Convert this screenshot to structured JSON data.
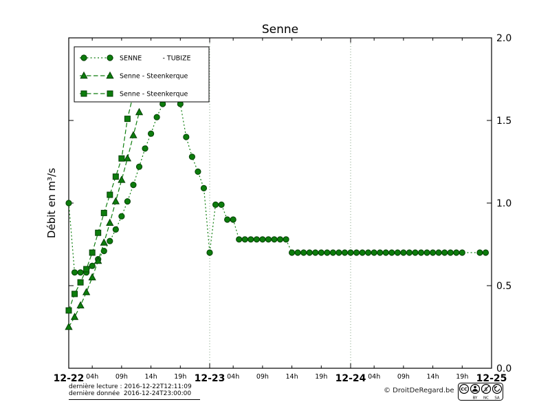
{
  "title": "Senne",
  "chart_data": {
    "type": "line",
    "title": "Senne",
    "ylabel": "Débit en m³/s",
    "ylim": [
      0.0,
      2.0
    ],
    "yticks": [
      {
        "value": 0.0,
        "label": "0.0"
      },
      {
        "value": 0.5,
        "label": "0.5"
      },
      {
        "value": 1.0,
        "label": "1.0"
      },
      {
        "value": 1.5,
        "label": "1.5"
      },
      {
        "value": 2.0,
        "label": "2.0"
      }
    ],
    "xlim_hours": [
      0,
      72
    ],
    "x_day_ticks": [
      {
        "hour": 0,
        "label": "12-22"
      },
      {
        "hour": 24,
        "label": "12-23"
      },
      {
        "hour": 48,
        "label": "12-24"
      },
      {
        "hour": 72,
        "label": "12-25"
      }
    ],
    "x_hour_ticks": [
      {
        "hour": 4,
        "label": "04h"
      },
      {
        "hour": 9,
        "label": "09h"
      },
      {
        "hour": 14,
        "label": "14h"
      },
      {
        "hour": 19,
        "label": "19h"
      },
      {
        "hour": 28,
        "label": "04h"
      },
      {
        "hour": 33,
        "label": "09h"
      },
      {
        "hour": 38,
        "label": "14h"
      },
      {
        "hour": 43,
        "label": "19h"
      },
      {
        "hour": 52,
        "label": "04h"
      },
      {
        "hour": 57,
        "label": "09h"
      },
      {
        "hour": 62,
        "label": "14h"
      },
      {
        "hour": 67,
        "label": "19h"
      }
    ],
    "grid_hours": [
      24,
      48
    ],
    "legend_position": "top-left",
    "colors": {
      "series": "#0c7c0c",
      "marker_edge": "#053f05",
      "grid": "#7f9f7f",
      "axis": "#000000"
    },
    "series": [
      {
        "id": "senne-tubize",
        "name": "SENNE          - TUBIZE",
        "marker": "circle",
        "linestyle": "dotted",
        "points": [
          [
            0,
            1.0
          ],
          [
            1,
            0.58
          ],
          [
            2,
            0.58
          ],
          [
            3,
            0.58
          ],
          [
            4,
            0.62
          ],
          [
            5,
            0.66
          ],
          [
            6,
            0.71
          ],
          [
            7,
            0.77
          ],
          [
            8,
            0.84
          ],
          [
            9,
            0.92
          ],
          [
            10,
            1.01
          ],
          [
            11,
            1.11
          ],
          [
            12,
            1.22
          ],
          [
            13,
            1.33
          ],
          [
            14,
            1.42
          ],
          [
            15,
            1.52
          ],
          [
            16,
            1.6
          ],
          [
            17,
            1.65
          ],
          [
            18,
            1.67
          ],
          [
            19,
            1.6
          ],
          [
            20,
            1.4
          ],
          [
            21,
            1.28
          ],
          [
            22,
            1.19
          ],
          [
            23,
            1.09
          ],
          [
            24,
            0.7
          ],
          [
            25,
            0.99
          ],
          [
            26,
            0.99
          ],
          [
            27,
            0.9
          ],
          [
            28,
            0.9
          ],
          [
            29,
            0.78
          ],
          [
            30,
            0.78
          ],
          [
            31,
            0.78
          ],
          [
            32,
            0.78
          ],
          [
            33,
            0.78
          ],
          [
            34,
            0.78
          ],
          [
            35,
            0.78
          ],
          [
            36,
            0.78
          ],
          [
            37,
            0.78
          ],
          [
            38,
            0.7
          ],
          [
            39,
            0.7
          ],
          [
            40,
            0.7
          ],
          [
            41,
            0.7
          ],
          [
            42,
            0.7
          ],
          [
            43,
            0.7
          ],
          [
            44,
            0.7
          ],
          [
            45,
            0.7
          ],
          [
            46,
            0.7
          ],
          [
            47,
            0.7
          ],
          [
            48,
            0.7
          ],
          [
            49,
            0.7
          ],
          [
            50,
            0.7
          ],
          [
            51,
            0.7
          ],
          [
            52,
            0.7
          ],
          [
            53,
            0.7
          ],
          [
            54,
            0.7
          ],
          [
            55,
            0.7
          ],
          [
            56,
            0.7
          ],
          [
            57,
            0.7
          ],
          [
            58,
            0.7
          ],
          [
            59,
            0.7
          ],
          [
            60,
            0.7
          ],
          [
            61,
            0.7
          ],
          [
            62,
            0.7
          ],
          [
            63,
            0.7
          ],
          [
            64,
            0.7
          ],
          [
            65,
            0.7
          ],
          [
            66,
            0.7
          ],
          [
            67,
            0.7
          ],
          [
            70,
            0.7
          ],
          [
            71,
            0.7
          ]
        ]
      },
      {
        "id": "senne-steenkerque-triangles",
        "name": "Senne - Steenkerque",
        "marker": "triangle",
        "linestyle": "dashed",
        "points": [
          [
            0,
            0.25
          ],
          [
            1,
            0.31
          ],
          [
            2,
            0.38
          ],
          [
            3,
            0.46
          ],
          [
            4,
            0.55
          ],
          [
            5,
            0.65
          ],
          [
            6,
            0.76
          ],
          [
            7,
            0.88
          ],
          [
            8,
            1.01
          ],
          [
            9,
            1.14
          ],
          [
            10,
            1.27
          ],
          [
            11,
            1.41
          ],
          [
            12,
            1.55
          ]
        ]
      },
      {
        "id": "senne-steenkerque-squares",
        "name": "Senne - Steenkerque",
        "marker": "square",
        "linestyle": "dashed",
        "points": [
          [
            0,
            0.35
          ],
          [
            1,
            0.45
          ],
          [
            2,
            0.52
          ],
          [
            3,
            0.6
          ],
          [
            4,
            0.7
          ],
          [
            5,
            0.82
          ],
          [
            6,
            0.94
          ],
          [
            7,
            1.05
          ],
          [
            8,
            1.16
          ],
          [
            9,
            1.27
          ],
          [
            10,
            1.51
          ],
          [
            11,
            1.66
          ],
          [
            12,
            1.8
          ]
        ]
      }
    ]
  },
  "footer": {
    "last_reading": "dernière lecture : 2016-12-22T12:11:09",
    "last_data": "dernière donnée  2016-12-24T23:00:00",
    "copyright": "© DroitDeRegard.be",
    "license_cc": "CC",
    "license": [
      "BY",
      "NC",
      "SA"
    ]
  }
}
